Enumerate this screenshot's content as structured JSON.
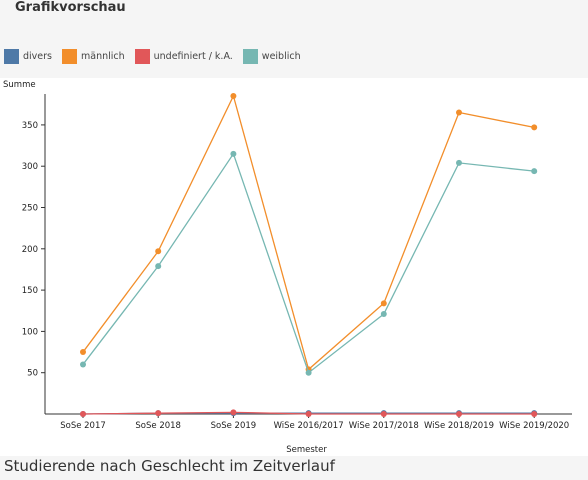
{
  "panel": {
    "title": "Grafikvorschau",
    "caption": "Studierende nach Geschlecht im Zeitverlauf"
  },
  "colors": {
    "divers": "#4e79a7",
    "maennlich": "#f28e2b",
    "undefiniert": "#e15759",
    "weiblich": "#76b7b2"
  },
  "chart_data": {
    "type": "line",
    "title": "",
    "xlabel": "Semester",
    "ylabel": "Summe",
    "ylim": [
      0,
      385
    ],
    "yticks": [
      50,
      100,
      150,
      200,
      250,
      300,
      350
    ],
    "categories": [
      "SoSe 2017",
      "SoSe 2018",
      "SoSe 2019",
      "WiSe 2016/2017",
      "WiSe 2017/2018",
      "WiSe 2018/2019",
      "WiSe 2019/2020"
    ],
    "legend_position": "top-left",
    "grid": false,
    "series": [
      {
        "name": "divers",
        "color": "#4e79a7",
        "values": [
          0,
          1,
          1,
          1,
          1,
          1,
          1
        ]
      },
      {
        "name": "männlich",
        "color": "#f28e2b",
        "values": [
          75,
          197,
          385,
          54,
          134,
          365,
          347
        ]
      },
      {
        "name": "undefiniert / k.A.",
        "color": "#e15759",
        "values": [
          0,
          1,
          2,
          0,
          0,
          0,
          0
        ]
      },
      {
        "name": "weiblich",
        "color": "#76b7b2",
        "values": [
          60,
          179,
          315,
          50,
          121,
          304,
          294
        ]
      }
    ]
  }
}
